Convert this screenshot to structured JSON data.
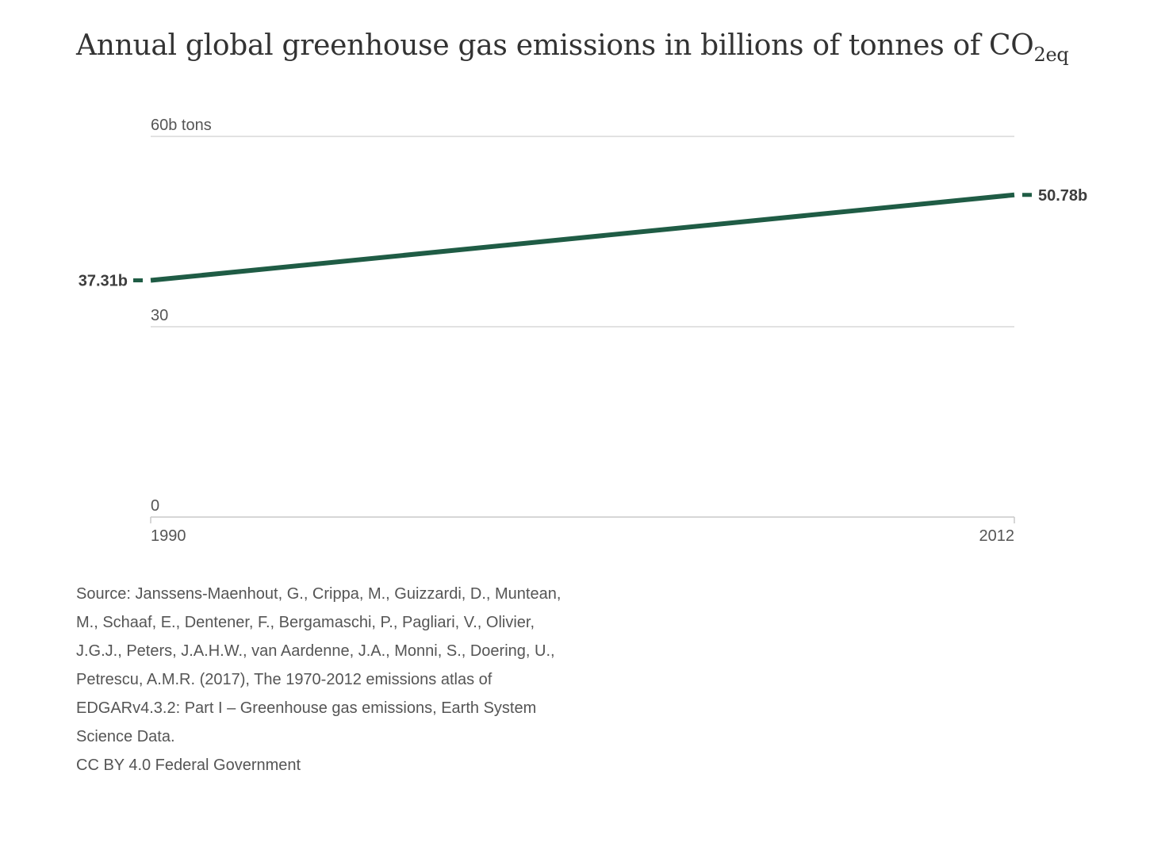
{
  "title": {
    "main": "Annual global greenhouse gas emissions in billions of tonnes of CO",
    "subscript": "2eq"
  },
  "chart_data": {
    "type": "line",
    "title": "Annual global greenhouse gas emissions in billions of tonnes of CO2eq",
    "x": [
      1990,
      2012
    ],
    "series": [
      {
        "values": [
          37.31,
          50.78
        ],
        "color": "#1f5c45"
      }
    ],
    "ylim": [
      0,
      60
    ],
    "xlim": [
      1990,
      2012
    ],
    "y_ticks": [
      {
        "value": 60,
        "label": "60b tons"
      },
      {
        "value": 30,
        "label": "30"
      },
      {
        "value": 0,
        "label": "0"
      }
    ],
    "x_ticks": [
      {
        "value": 1990,
        "label": "1990"
      },
      {
        "value": 2012,
        "label": "2012"
      }
    ],
    "data_labels": {
      "start": "37.31b",
      "end": "50.78b"
    },
    "grid": true,
    "legend": "none",
    "gridline_color": "#d9d9d9",
    "axis_color": "#c8c8c8"
  },
  "source": {
    "text": "Source: Janssens-Maenhout, G., Crippa, M., Guizzardi, D., Muntean, M., Schaaf, E., Dentener, F., Bergamaschi, P., Pagliari, V., Olivier, J.G.J., Peters, J.A.H.W., van Aardenne, J.A., Monni, S., Doering, U., Petrescu, A.M.R. (2017), The 1970-2012 emissions atlas of EDGARv4.3.2: Part I – Greenhouse gas emissions, Earth System Science Data.",
    "license": "CC BY 4.0 Federal Government"
  }
}
